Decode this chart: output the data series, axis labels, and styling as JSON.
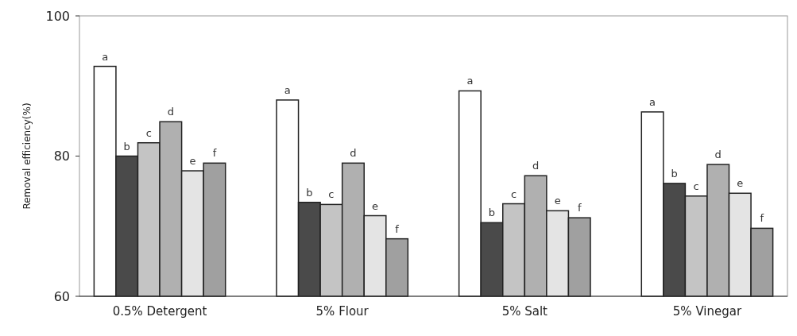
{
  "chart_data": {
    "type": "bar",
    "ylabel": "Removal efficiency(%)",
    "categories": [
      "0.5% Detergent",
      "5% Flour",
      "5% Salt",
      "5% Vinegar"
    ],
    "ylim": [
      60,
      100
    ],
    "yticks": [
      60,
      80,
      100
    ],
    "grid": false,
    "series": [
      {
        "color": "#ffffff",
        "values": [
          92.8,
          88.0,
          89.3,
          86.3
        ],
        "value_labels": [
          "a",
          "a",
          "a",
          "a"
        ]
      },
      {
        "color": "#4a4a4a",
        "values": [
          80.0,
          73.4,
          70.5,
          76.1
        ],
        "value_labels": [
          "b",
          "b",
          "b",
          "b"
        ]
      },
      {
        "color": "#c4c4c4",
        "values": [
          81.9,
          73.1,
          73.2,
          74.3
        ],
        "value_labels": [
          "c",
          "c",
          "c",
          "c"
        ]
      },
      {
        "color": "#b0b0b0",
        "values": [
          84.9,
          79.0,
          77.2,
          78.8
        ],
        "value_labels": [
          "d",
          "d",
          "d",
          "d"
        ]
      },
      {
        "color": "#e4e4e4",
        "values": [
          77.9,
          71.5,
          72.2,
          74.7
        ],
        "value_labels": [
          "e",
          "e",
          "e",
          "e"
        ]
      },
      {
        "color": "#a0a0a0",
        "values": [
          79.0,
          68.2,
          71.2,
          69.7
        ],
        "value_labels": [
          "f",
          "f",
          "f",
          "f"
        ]
      }
    ]
  }
}
